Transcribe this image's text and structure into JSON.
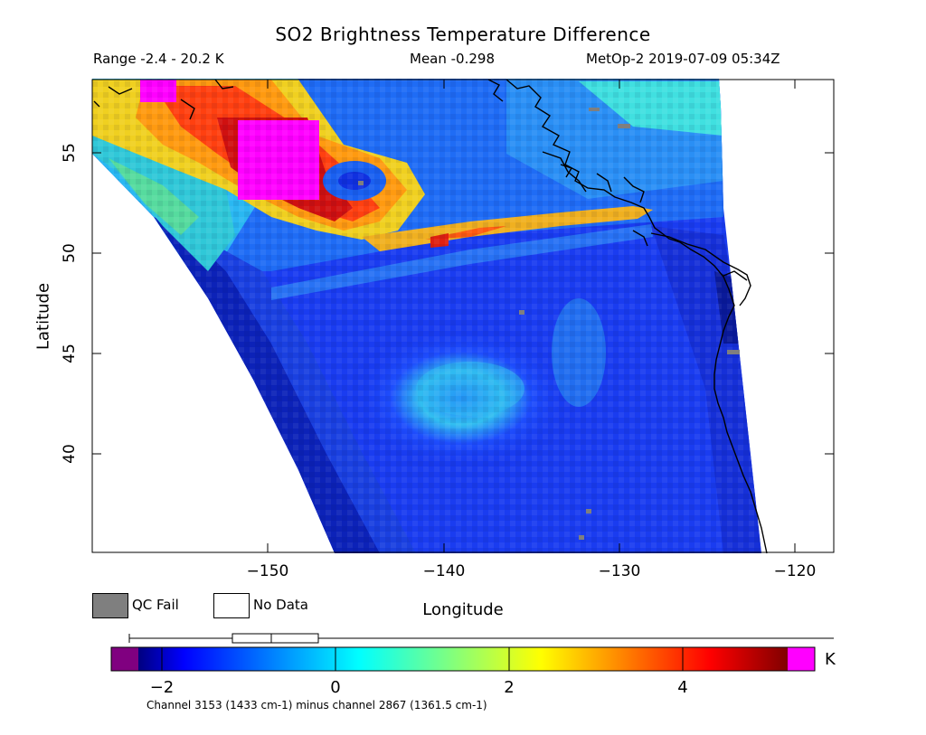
{
  "header": {
    "title": "SO2 Brightness Temperature Difference",
    "range": "Range -2.4 - 20.2 K",
    "mean": "Mean -0.298",
    "satellite_time": "MetOp-2 2019-07-09 05:34Z"
  },
  "axes": {
    "xlabel": "Longitude",
    "ylabel": "Latitude",
    "lon_range": [
      -160,
      -118
    ],
    "lat_range": [
      35,
      58.5
    ],
    "xticks": [
      {
        "value": -150,
        "label": "−150"
      },
      {
        "value": -140,
        "label": "−140"
      },
      {
        "value": -130,
        "label": "−130"
      },
      {
        "value": -120,
        "label": "−120"
      }
    ],
    "yticks": [
      {
        "value": 40,
        "label": "40"
      },
      {
        "value": 45,
        "label": "45"
      },
      {
        "value": 50,
        "label": "50"
      },
      {
        "value": 55,
        "label": "55"
      }
    ]
  },
  "legend": {
    "qc_fail": "QC Fail",
    "no_data": "No Data",
    "qc_color": "#7f7f7f",
    "no_data_color": "#ffffff"
  },
  "colorbar": {
    "min": -2.4,
    "max": 5.4,
    "unit": "K",
    "ticks": [
      {
        "value": -2,
        "label": "−2"
      },
      {
        "value": 0,
        "label": "0"
      },
      {
        "value": 2,
        "label": "2"
      },
      {
        "value": 4,
        "label": "4"
      }
    ],
    "under_color": "#800080",
    "over_color": "#ff00ff",
    "stops": [
      "#000080",
      "#0000ff",
      "#00ffff",
      "#ffff00",
      "#ff0000",
      "#800000"
    ]
  },
  "footnote": "Channel 3153 (1433 cm-1) minus channel 2867 (1361.5 cm-1)",
  "map_features": {
    "so2_plume": "magenta core near 54N 150W",
    "plume_band": "orange streak from 52N 148W to 51N 125W"
  }
}
